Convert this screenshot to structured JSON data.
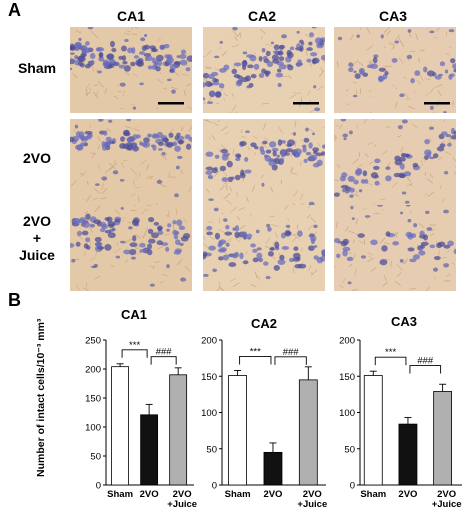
{
  "panels": {
    "a": {
      "letter": "A"
    },
    "b": {
      "letter": "B"
    }
  },
  "figure_a": {
    "columns": [
      "CA1",
      "CA2",
      "CA3"
    ],
    "rows": [
      "Sham",
      "2VO",
      "2VO\n+\nJuice"
    ]
  },
  "chart_data": [
    {
      "type": "bar",
      "title": "CA1",
      "categories": [
        "Sham",
        "2VO",
        "2VO\n+Juice"
      ],
      "values": [
        204,
        121,
        190
      ],
      "errors": [
        5,
        18,
        12
      ],
      "colors": [
        "#ffffff",
        "#111111",
        "#b0b0b0"
      ],
      "ylabel": "Number of intact cells/10⁻³ mm³",
      "ylim": [
        0,
        250
      ],
      "yticks": [
        0,
        50,
        100,
        150,
        200,
        250
      ],
      "significance": [
        {
          "from": 0,
          "to": 1,
          "label": "***"
        },
        {
          "from": 1,
          "to": 2,
          "label": "###"
        }
      ]
    },
    {
      "type": "bar",
      "title": "CA2",
      "categories": [
        "Sham",
        "2VO",
        "2VO\n+Juice"
      ],
      "values": [
        151,
        45,
        145
      ],
      "errors": [
        7,
        13,
        18
      ],
      "colors": [
        "#ffffff",
        "#111111",
        "#b0b0b0"
      ],
      "ylim": [
        0,
        200
      ],
      "yticks": [
        0,
        50,
        100,
        150,
        200
      ],
      "significance": [
        {
          "from": 0,
          "to": 1,
          "label": "***"
        },
        {
          "from": 1,
          "to": 2,
          "label": "###"
        }
      ]
    },
    {
      "type": "bar",
      "title": "CA3",
      "categories": [
        "Sham",
        "2VO",
        "2VO\n+Juice"
      ],
      "values": [
        151,
        84,
        129
      ],
      "errors": [
        6,
        9,
        10
      ],
      "colors": [
        "#ffffff",
        "#111111",
        "#b0b0b0"
      ],
      "ylim": [
        0,
        200
      ],
      "yticks": [
        0,
        50,
        100,
        150,
        200
      ],
      "significance": [
        {
          "from": 0,
          "to": 1,
          "label": "***"
        },
        {
          "from": 1,
          "to": 2,
          "label": "###"
        }
      ]
    }
  ]
}
